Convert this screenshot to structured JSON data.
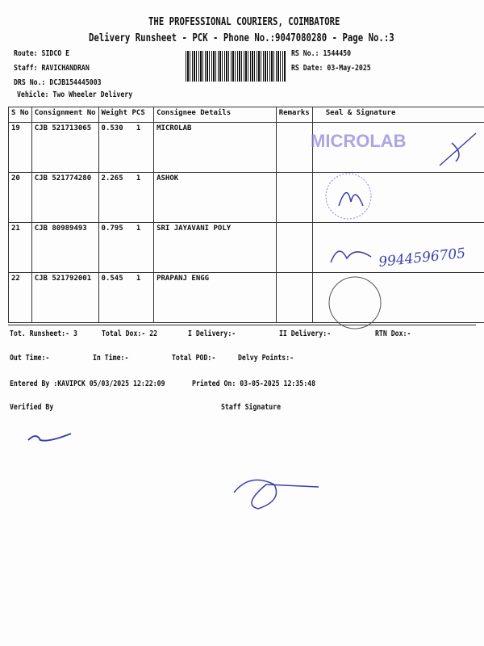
{
  "header": {
    "company": "THE PROFESSIONAL COURIERS, COIMBATORE",
    "subtitle": "Delivery Runsheet - PCK - Phone No.:9047080280 - Page No.:3",
    "route": "Route: SIDCO E",
    "staff": "Staff: RAVICHANDRAN",
    "drs": "DRS No.: DCJB154445003",
    "vehicle": "Vehicle: Two Wheeler Delivery",
    "rs_no": "RS No.: 1544450",
    "rs_date": "RS Date: 03-May-2025"
  },
  "table": {
    "headers": [
      "S No",
      "Consignment No",
      "Weight",
      "PCS",
      "Consignee Details",
      "Remarks",
      "Seal & Signature"
    ],
    "rows": [
      {
        "sno": "19",
        "consignment": "CJB 521713065",
        "weight": "0.530",
        "pcs": "1",
        "consignee": "MICROLAB"
      },
      {
        "sno": "20",
        "consignment": "CJB 521774280",
        "weight": "2.265",
        "pcs": "1",
        "consignee": "ASHOK"
      },
      {
        "sno": "21",
        "consignment": "CJB 80989493",
        "weight": "0.795",
        "pcs": "1",
        "consignee": "SRI JAYAVANI POLY"
      },
      {
        "sno": "22",
        "consignment": "CJB 521792001",
        "weight": "0.545",
        "pcs": "1",
        "consignee": "PRAPANJ ENGG"
      }
    ]
  },
  "summary": {
    "tot_runsheet": "Tot. Runsheet:- 3",
    "total_dox": "Total Dox:-   22",
    "i_delivery": "I Delivery:-",
    "ii_delivery": "II Delivery:-",
    "rtn_dox": "RTN Dox:-",
    "out_time": "Out Time:-",
    "in_time": "In Time:-",
    "total_pod": "Total POD:-",
    "delvy_points": "Delvy Points:-",
    "entered_by": "Entered By :KAVIPCK 05/03/2025 12:22:09",
    "printed_on": "Printed On: 03-05-2025 12:35:48",
    "verified_by": "Verified By",
    "staff_signature": "Staff Signature"
  },
  "handwriting": {
    "phone": "9944596705",
    "stamp_text": "MICROLAB"
  },
  "colors": {
    "ink": "#3b3fa8",
    "stamp": "#6a5fc8"
  }
}
